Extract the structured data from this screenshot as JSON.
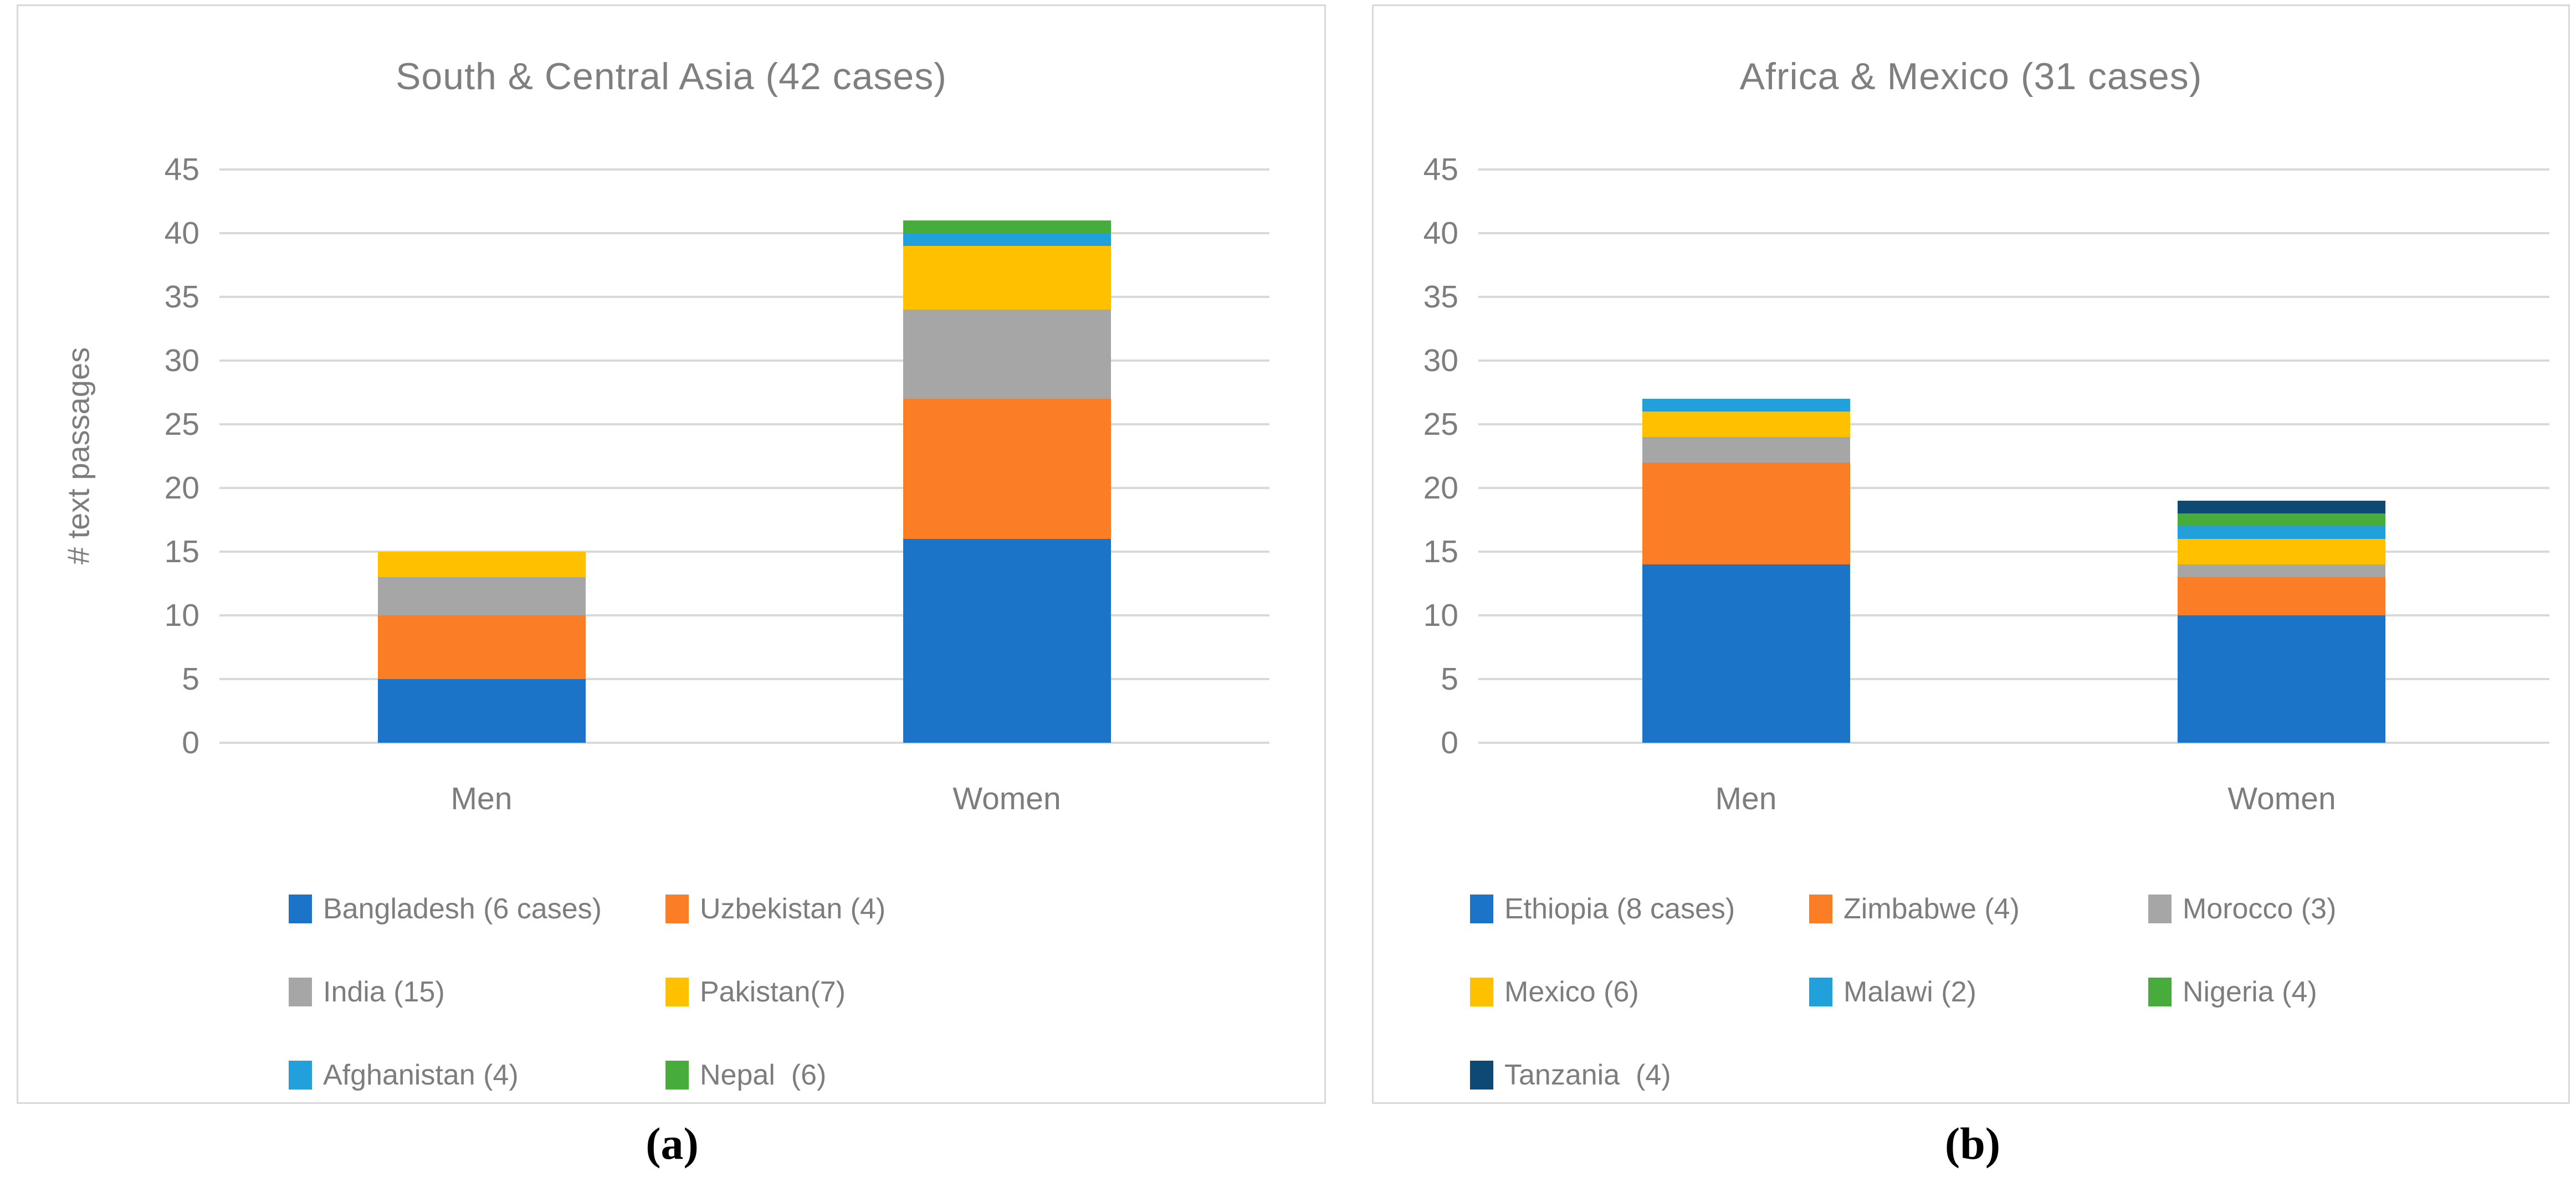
{
  "captions": {
    "a": "(a)",
    "b": "(b)"
  },
  "chart_data": [
    {
      "type": "bar",
      "stacked": true,
      "title": "South & Central Asia (42 cases)",
      "xlabel": "",
      "ylabel": "# text passages",
      "categories": [
        "Men",
        "Women"
      ],
      "ylim": [
        0,
        45
      ],
      "y_ticks": [
        45,
        40,
        35,
        30,
        25,
        20,
        15,
        10,
        5,
        0
      ],
      "grid": true,
      "legend_position": "bottom",
      "legend_columns": 2,
      "series": [
        {
          "name": "Bangladesh (6 cases)",
          "color": "#1B74C8",
          "values": [
            5,
            16
          ]
        },
        {
          "name": "Uzbekistan (4)",
          "color": "#FB7D26",
          "values": [
            5,
            11
          ]
        },
        {
          "name": "India (15)",
          "color": "#A6A6A6",
          "values": [
            3,
            7
          ]
        },
        {
          "name": "Pakistan(7)",
          "color": "#FFC000",
          "values": [
            2,
            5
          ]
        },
        {
          "name": "Afghanistan (4)",
          "color": "#21A0DC",
          "values": [
            0,
            1
          ]
        },
        {
          "name": "Nepal  (6)",
          "color": "#47AC3B",
          "values": [
            0,
            1
          ]
        }
      ],
      "bar_totals": {
        "Men": 15,
        "Women": 41
      }
    },
    {
      "type": "bar",
      "stacked": true,
      "title": "Africa & Mexico (31 cases)",
      "xlabel": "",
      "ylabel": "",
      "categories": [
        "Men",
        "Women"
      ],
      "ylim": [
        0,
        45
      ],
      "y_ticks": [
        45,
        40,
        35,
        30,
        25,
        20,
        15,
        10,
        5,
        0
      ],
      "grid": true,
      "legend_position": "bottom",
      "legend_columns": 3,
      "series": [
        {
          "name": "Ethiopia (8 cases)",
          "color": "#1B74C8",
          "values": [
            14,
            10
          ]
        },
        {
          "name": "Zimbabwe (4)",
          "color": "#FB7D26",
          "values": [
            8,
            3
          ]
        },
        {
          "name": "Morocco (3)",
          "color": "#A6A6A6",
          "values": [
            2,
            1
          ]
        },
        {
          "name": "Mexico (6)",
          "color": "#FFC000",
          "values": [
            2,
            2
          ]
        },
        {
          "name": "Malawi (2)",
          "color": "#21A0DC",
          "values": [
            1,
            1
          ]
        },
        {
          "name": "Nigeria (4)",
          "color": "#47AC3B",
          "values": [
            0,
            1
          ]
        },
        {
          "name": "Tanzania  (4)",
          "color": "#0D4973",
          "values": [
            0,
            1
          ]
        }
      ],
      "bar_totals": {
        "Men": 27,
        "Women": 19
      }
    }
  ]
}
